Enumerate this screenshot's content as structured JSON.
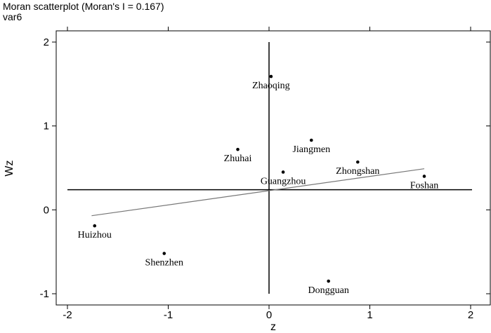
{
  "chart_data": {
    "type": "scatter",
    "title": "Moran scatterplot (Moran's I = 0.167)",
    "subtitle": "var6",
    "xlabel": "z",
    "ylabel": "Wz",
    "xlim": [
      -2.0,
      2.0
    ],
    "ylim": [
      -1.0,
      2.0
    ],
    "xticks": [
      -2,
      -1,
      0,
      1,
      2
    ],
    "yticks": [
      -1,
      0,
      1,
      2
    ],
    "grid": false,
    "points": [
      {
        "label": "Zhaoqing",
        "x": 0.02,
        "y": 1.59
      },
      {
        "label": "Jiangmen",
        "x": 0.42,
        "y": 0.83
      },
      {
        "label": "Zhuhai",
        "x": -0.31,
        "y": 0.72
      },
      {
        "label": "Zhongshan",
        "x": 0.88,
        "y": 0.57
      },
      {
        "label": "Guangzhou",
        "x": 0.14,
        "y": 0.45
      },
      {
        "label": "Foshan",
        "x": 1.54,
        "y": 0.4
      },
      {
        "label": "Huizhou",
        "x": -1.73,
        "y": -0.19
      },
      {
        "label": "Shenzhen",
        "x": -1.04,
        "y": -0.52
      },
      {
        "label": "Dongguan",
        "x": 0.59,
        "y": -0.85
      }
    ],
    "reference_lines": {
      "vertical_x": 0.0,
      "horizontal_y": 0.24
    },
    "regression_line": {
      "x": [
        -1.76,
        1.54
      ],
      "y": [
        -0.07,
        0.49
      ]
    },
    "colors": {
      "points": "#000000",
      "regression": "#777777",
      "axes": "#000000"
    }
  }
}
